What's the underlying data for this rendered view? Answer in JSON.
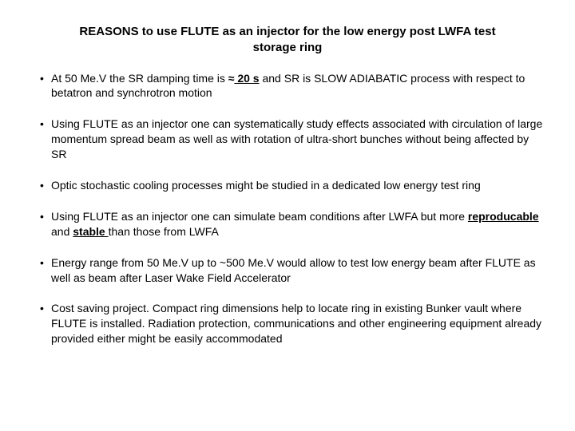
{
  "title_line1": "REASONS to use FLUTE as an injector for the   low energy post LWFA  test",
  "title_line2": "storage ring",
  "bullets": [
    {
      "pre": "At 50 Me.V the SR damping time is ",
      "approx": "≈",
      "emph": " 20 s",
      "post": " and SR is SLOW ADIABATIC process with respect  to betatron and synchrotron motion"
    },
    {
      "pre": "Using FLUTE as an injector one can systematically study effects associated with circulation of large momentum spread beam as well as with rotation of ultra-short bunches without being affected by SR",
      "approx": "",
      "emph": "",
      "post": ""
    },
    {
      "pre": "Optic stochastic cooling processes might be studied in a dedicated  low energy test ring",
      "approx": "",
      "emph": "",
      "post": ""
    },
    {
      "pre": "Using FLUTE as an injector one can simulate beam conditions after LWFA but more ",
      "u1": "reproducable",
      "mid": " and ",
      "u2": "stable ",
      "post2": "than those from LWFA"
    },
    {
      "pre": "Energy range from 50 Me.V up to ~500 Me.V would allow to test low energy beam after FLUTE as well as beam after Laser Wake Field Accelerator",
      "approx": "",
      "emph": "",
      "post": ""
    },
    {
      "pre": "Cost saving project. Compact ring dimensions help to locate ring in existing Bunker vault where FLUTE is installed. Radiation protection, communications and other engineering equipment already provided either might  be easily accommodated",
      "approx": "",
      "emph": "",
      "post": ""
    }
  ]
}
